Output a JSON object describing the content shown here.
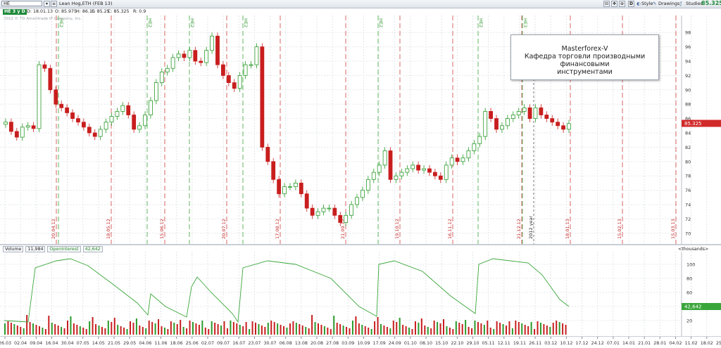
{
  "toolbar": {
    "symbol_value": "HE",
    "description": "Lean Hog,ETH (FEB 13)",
    "right_price": "85.325",
    "period_button": "D",
    "style_label": "Style",
    "drawings_label": "Drawings",
    "studies_label": "Studies"
  },
  "subbar": {
    "symbol_tag": "HE 3 y D",
    "date": "D: 18.01.13",
    "open": "O: 85.975",
    "high": "H: 86.15",
    "low": "L: 85.25",
    "close": "C: 85.325",
    "range": "R: 0.9"
  },
  "copyright": "2012 © TD Ameritrade IP Company, Inc.",
  "annotation": {
    "line1": "Masterforex-V",
    "line2": "Кафедра торговли производными финансовыми",
    "line3": "инструментами"
  },
  "price_axis": {
    "labels": [
      "98",
      "96",
      "94",
      "92",
      "90",
      "88",
      "86",
      "84",
      "82",
      "80",
      "78",
      "76",
      "74",
      "72",
      "70"
    ],
    "current_price": "85.325",
    "current_color": "#d12a2a"
  },
  "volume_panel": {
    "volume_label": "Volume",
    "volume_value": "11,984",
    "oi_label": "OpenInterest",
    "oi_value": "42,642",
    "units_label": "<thousands>",
    "axis_labels": [
      "100",
      "80",
      "60",
      "40",
      "20"
    ],
    "oi_badge": "42,642",
    "oi_color": "#3aa63a"
  },
  "x_axis_labels": [
    "26.03",
    "02.04",
    "09.04",
    "16.04",
    "30.04",
    "07.05",
    "14.05",
    "21.05",
    "29.05",
    "04.06",
    "11.06",
    "18.06",
    "25.06",
    "02.07",
    "09.07",
    "16.07",
    "23.07",
    "30.07",
    "06.08",
    "13.08",
    "20.08",
    "27.08",
    "03.09",
    "10.09",
    "17.09",
    "24.09",
    "01.10",
    "08.10",
    "15.10",
    "22.10",
    "29.10",
    "05.11",
    "12.11",
    "19.11",
    "26.11",
    "03.12",
    "10.12",
    "17.12",
    "24.12",
    "07.01",
    "14.01",
    "21.01",
    "28.01",
    "04.02",
    "11.02",
    "18.02",
    "25.02",
    "04.03",
    "11.03",
    "18.03"
  ],
  "event_labels": {
    "red": [
      "20.04.12",
      "18.05.12",
      "15.06.12",
      "20.07.12",
      "17.08.12",
      "21.09.12",
      "19.10.12",
      "16.11.12",
      "21.12.12",
      "18.01.13",
      "15.02.13",
      "15.03.13"
    ],
    "green": [
      "HE2",
      "HE2",
      "HE2",
      "HE2",
      "HE2",
      "HE2",
      "HE3"
    ],
    "year": "2012 year"
  },
  "chart_data": {
    "type": "candlestick",
    "symbol": "Lean Hog,ETH (FEB 13)",
    "ylim": [
      69,
      99
    ],
    "last_close": 85.325,
    "closes": [
      85.5,
      84.2,
      83.4,
      84.8,
      85.0,
      84.6,
      93.5,
      93.0,
      90.0,
      88.0,
      87.5,
      86.8,
      86.0,
      85.5,
      84.8,
      84.0,
      83.5,
      84.5,
      85.5,
      86.3,
      87.0,
      87.8,
      86.5,
      84.5,
      85.0,
      86.5,
      88.5,
      91.0,
      92.5,
      93.0,
      94.5,
      95.0,
      94.5,
      95.5,
      94.0,
      93.8,
      95.5,
      97.5,
      93.5,
      92.0,
      91.0,
      90.2,
      92.0,
      93.5,
      93.5,
      96.0,
      82.0,
      80.0,
      77.5,
      75.5,
      76.5,
      76.5,
      77.0,
      75.5,
      73.5,
      72.5,
      73.0,
      73.5,
      73.5,
      72.5,
      71.5,
      72.5,
      74.0,
      75.0,
      76.0,
      77.5,
      78.5,
      79.5,
      81.5,
      77.5,
      78.0,
      78.5,
      79.0,
      79.5,
      78.8,
      79.0,
      78.5,
      78.0,
      77.5,
      79.5,
      80.5,
      80.0,
      80.5,
      81.5,
      82.5,
      83.5,
      87.0,
      86.0,
      84.5,
      85.0,
      86.0,
      86.5,
      87.0,
      87.5,
      86.0,
      87.5,
      86.5,
      86.0,
      85.5,
      85.0,
      84.5,
      85.3
    ]
  }
}
